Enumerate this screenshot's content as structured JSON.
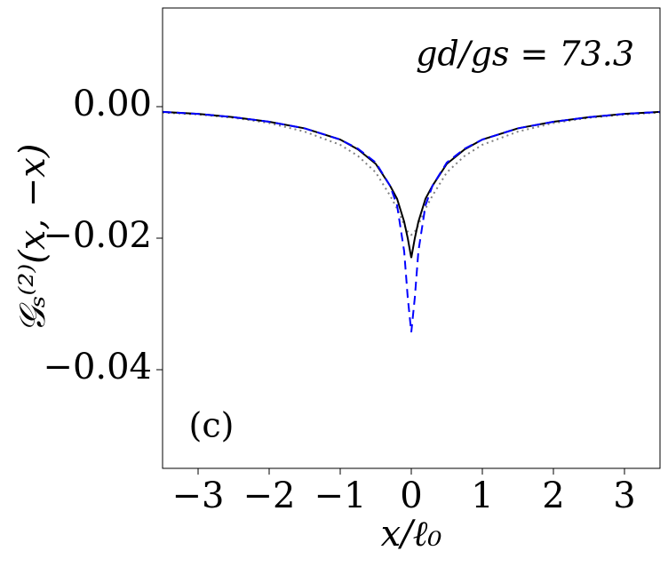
{
  "chart_data": {
    "type": "line",
    "annotation": "gd/gs = 73.3",
    "panel_label": "(c)",
    "x_label": "x/ℓ₀",
    "y_label": "𝒢ₛ⁽²⁾(x, −x)",
    "x": [
      -3.5,
      -3,
      -2.5,
      -2,
      -1.5,
      -1,
      -0.75,
      -0.5,
      -0.3,
      -0.2,
      -0.1,
      -0.05,
      0,
      0.05,
      0.1,
      0.2,
      0.3,
      0.5,
      0.75,
      1,
      1.5,
      2,
      2.5,
      3,
      3.5
    ],
    "series": [
      {
        "color": "#808080",
        "dash": "2,4",
        "values": [
          -0.0009,
          -0.0012,
          -0.0017,
          -0.0025,
          -0.0038,
          -0.0058,
          -0.0075,
          -0.01,
          -0.0135,
          -0.0155,
          -0.018,
          -0.019,
          -0.0195,
          -0.019,
          -0.018,
          -0.0155,
          -0.0135,
          -0.01,
          -0.0075,
          -0.0058,
          -0.0038,
          -0.0025,
          -0.0017,
          -0.0012,
          -0.0009
        ]
      },
      {
        "color": "#000000",
        "dash": "",
        "values": [
          -0.0008,
          -0.0011,
          -0.0016,
          -0.0023,
          -0.0033,
          -0.005,
          -0.0065,
          -0.0087,
          -0.012,
          -0.014,
          -0.0175,
          -0.02,
          -0.023,
          -0.02,
          -0.0175,
          -0.014,
          -0.012,
          -0.0087,
          -0.0065,
          -0.005,
          -0.0033,
          -0.0023,
          -0.0016,
          -0.0011,
          -0.0008
        ]
      },
      {
        "color": "#0000ff",
        "dash": "10,6",
        "values": [
          -0.0008,
          -0.0011,
          -0.0016,
          -0.0023,
          -0.0033,
          -0.005,
          -0.0064,
          -0.0085,
          -0.012,
          -0.015,
          -0.022,
          -0.029,
          -0.0343,
          -0.029,
          -0.022,
          -0.015,
          -0.012,
          -0.0085,
          -0.0064,
          -0.005,
          -0.0033,
          -0.0023,
          -0.0016,
          -0.0011,
          -0.0008
        ]
      }
    ],
    "xlim": [
      -3.5,
      3.5
    ],
    "ylim": [
      -0.055,
      0.015
    ],
    "xticks": [
      {
        "value": -3,
        "label": "−3"
      },
      {
        "value": -2,
        "label": "−2"
      },
      {
        "value": -1,
        "label": "−1"
      },
      0,
      1,
      2,
      3
    ],
    "yticks": [
      {
        "value": -0.04,
        "label": "−0.04"
      },
      {
        "value": -0.02,
        "label": "−0.02"
      },
      {
        "value": 0,
        "label": "0.00"
      }
    ]
  }
}
